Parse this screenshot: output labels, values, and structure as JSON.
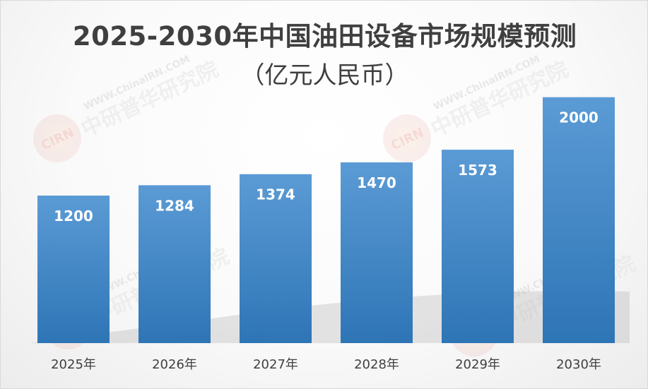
{
  "title": {
    "line1": "2025-2030年中国油田设备市场规模预测",
    "line2": "（亿元人民币）"
  },
  "watermark": {
    "url_text": "WWW.ChinaIRN.COM",
    "org_text": "中研普华研究院",
    "logo_text": "CIRN"
  },
  "colors": {
    "bar_top": "#5b9bd5",
    "bar_bottom": "#2e75b6",
    "title": "#3f3f3f",
    "tick": "#404040"
  },
  "chart_data": {
    "type": "bar",
    "title": "2025-2030年中国油田设备市场规模预测（亿元人民币）",
    "categories": [
      "2025年",
      "2026年",
      "2027年",
      "2028年",
      "2029年",
      "2030年"
    ],
    "series": [
      {
        "values": [
          1200,
          1284,
          1374,
          1470,
          1573,
          2000
        ]
      }
    ],
    "data_labels": [
      "1200",
      "1284",
      "1374",
      "1470",
      "1573",
      "2000"
    ],
    "xlabel": "",
    "ylabel": "",
    "ylim": [
      0,
      2400
    ],
    "grid": false,
    "legend": "none"
  }
}
